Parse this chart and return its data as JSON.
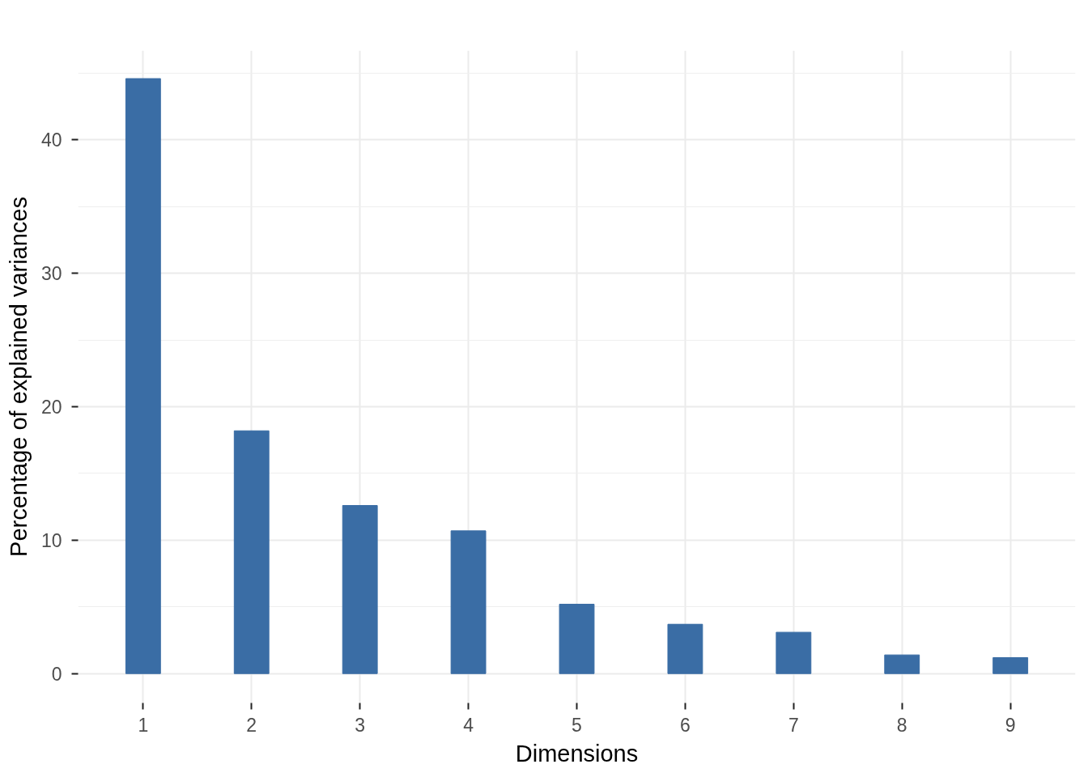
{
  "chart_data": {
    "type": "bar",
    "xlabel": "Dimensions",
    "ylabel": "Percentage of explained variances",
    "categories": [
      "1",
      "2",
      "3",
      "4",
      "5",
      "6",
      "7",
      "8",
      "9"
    ],
    "values": [
      44.6,
      18.2,
      12.6,
      10.7,
      5.2,
      3.7,
      3.1,
      1.4,
      1.2
    ],
    "color": "#3a6da5",
    "ylim": [
      -2.2,
      46.7
    ],
    "yticks": [
      0,
      10,
      20,
      30,
      40
    ],
    "grid": true
  }
}
